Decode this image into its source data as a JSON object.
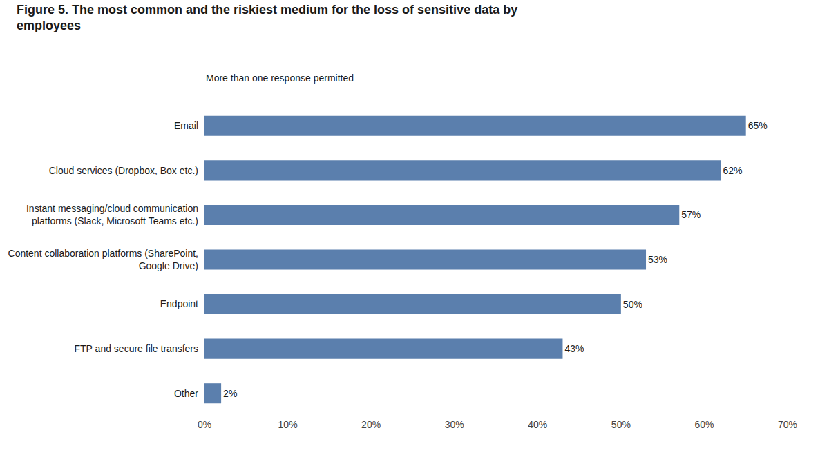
{
  "chart_data": {
    "type": "bar",
    "orientation": "horizontal",
    "title": "Figure 5. The most common and the riskiest medium for the loss of sensitive data by\nemployees",
    "subtitle": "More than one response permitted",
    "categories": [
      "Email",
      "Cloud services (Dropbox, Box etc.)",
      "Instant messaging/cloud communication\nplatforms (Slack, Microsoft Teams etc.)",
      "Content collaboration platforms (SharePoint,\nGoogle Drive)",
      "Endpoint",
      "FTP and secure file transfers",
      "Other"
    ],
    "values": [
      65,
      62,
      57,
      53,
      50,
      43,
      2
    ],
    "value_labels": [
      "65%",
      "62%",
      "57%",
      "53%",
      "50%",
      "43%",
      "2%"
    ],
    "data_labels": true,
    "color": "#5b7fad",
    "xlim": [
      0,
      70
    ],
    "xticks": [
      {
        "value": 0,
        "label": "0%"
      },
      {
        "value": 10,
        "label": "10%"
      },
      {
        "value": 20,
        "label": "20%"
      },
      {
        "value": 30,
        "label": "30%"
      },
      {
        "value": 40,
        "label": "40%"
      },
      {
        "value": 50,
        "label": "50%"
      },
      {
        "value": 60,
        "label": "60%"
      },
      {
        "value": 70,
        "label": "70%"
      }
    ],
    "grid": false
  }
}
